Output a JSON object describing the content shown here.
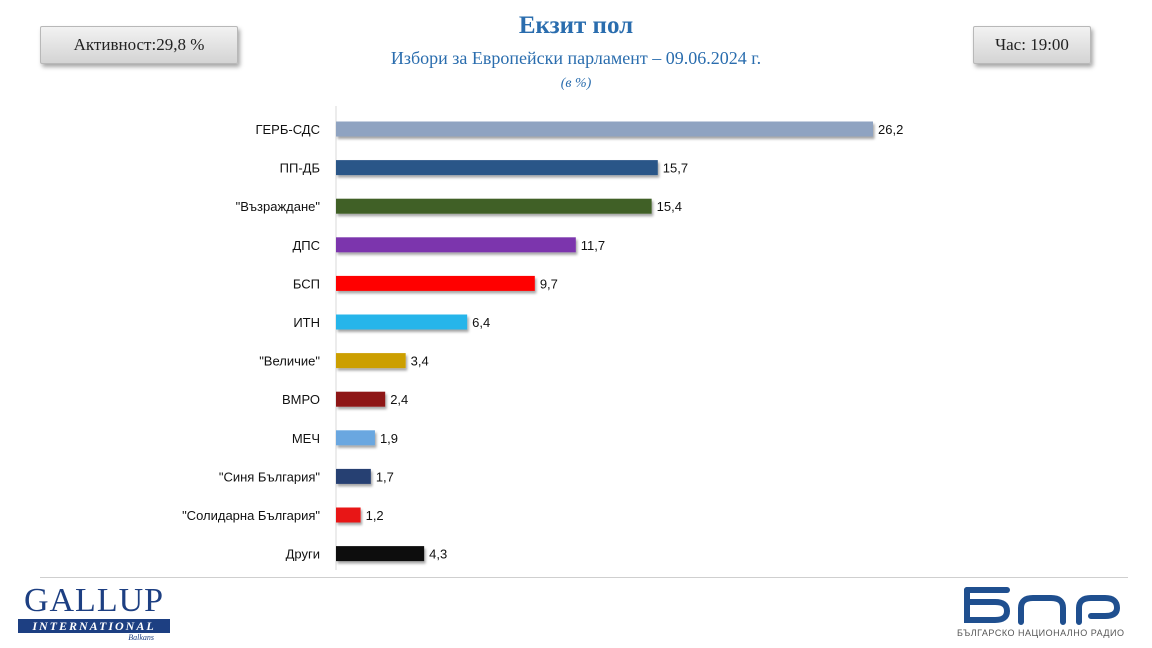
{
  "header": {
    "turnout": "Активност:29,8 %",
    "time": "Час: 19:00"
  },
  "chart_data": {
    "type": "bar",
    "orientation": "horizontal",
    "title": "Екзит пол",
    "subtitle": "Избори за Европейски парламент – 09.06.2024 г.",
    "unit": "(в %)",
    "categories": [
      "ГЕРБ-СДС",
      "ПП-ДБ",
      "\"Възраждане\"",
      "ДПС",
      "БСП",
      "ИТН",
      "\"Величие\"",
      "ВМРО",
      "МЕЧ",
      "\"Синя България\"",
      "\"Солидарна България\"",
      "Други"
    ],
    "values": [
      26.2,
      15.7,
      15.4,
      11.7,
      9.7,
      6.4,
      3.4,
      2.4,
      1.9,
      1.7,
      1.2,
      4.3
    ],
    "value_labels": [
      "26,2",
      "15,7",
      "15,4",
      "11,7",
      "9,7",
      "6,4",
      "3,4",
      "2,4",
      "1,9",
      "1,7",
      "1,2",
      "4,3"
    ],
    "colors": [
      "#8fa3c1",
      "#2b5688",
      "#3f6127",
      "#7b35ad",
      "#ff0000",
      "#27b5ea",
      "#cc9f05",
      "#8e1616",
      "#6aa7e0",
      "#283f72",
      "#e81515",
      "#111111"
    ],
    "xlim": [
      0,
      26.2
    ],
    "grid": false,
    "legend": "none"
  },
  "footer": {
    "gallup_main": "GALLUP",
    "gallup_band": "INTERNATIONAL",
    "gallup_sub": "Balkans",
    "bnr_caption": "БЪЛГАРСКО НАЦИОНАЛНО РАДИО"
  }
}
